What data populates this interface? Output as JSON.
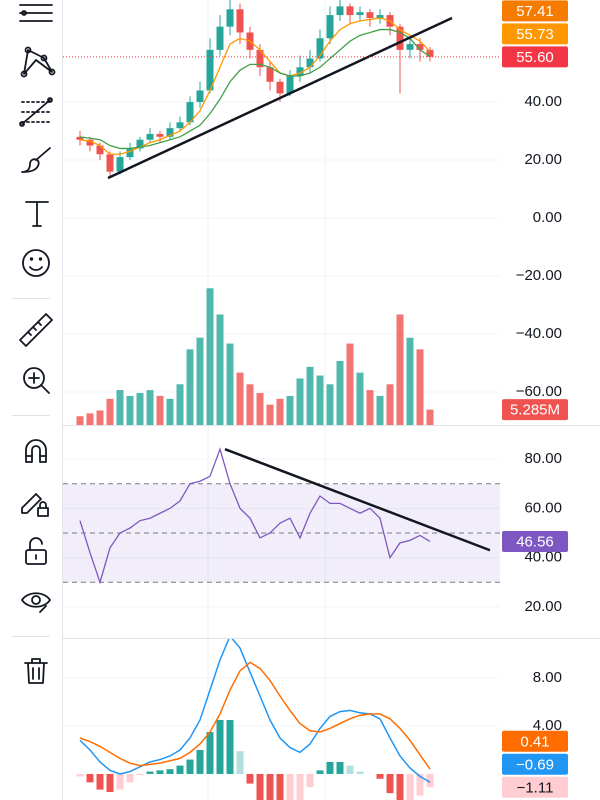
{
  "chart_data": [
    {
      "type": "candlestick",
      "open": [
        28,
        27,
        25,
        22,
        16,
        21,
        24,
        27,
        29,
        28,
        31,
        33,
        40,
        44,
        58,
        66,
        72,
        64,
        58,
        52,
        47,
        43,
        49,
        52,
        55,
        62,
        70,
        73,
        70,
        71,
        69,
        70,
        66,
        58,
        60,
        58
      ],
      "high": [
        30,
        28,
        26,
        23,
        23,
        26,
        28,
        31,
        30,
        33,
        35,
        42,
        47,
        62,
        70,
        76,
        74,
        66,
        60,
        54,
        48,
        51,
        56,
        58,
        65,
        73,
        76,
        74,
        73,
        72,
        72,
        71,
        67,
        63,
        62,
        59
      ],
      "low": [
        25,
        23,
        20,
        14,
        15,
        20,
        23,
        26,
        26,
        27,
        30,
        32,
        38,
        43,
        56,
        63,
        60,
        55,
        49,
        44,
        40,
        42,
        47,
        50,
        54,
        60,
        68,
        67,
        68,
        66,
        67,
        63,
        43,
        55,
        54,
        54
      ],
      "close": [
        27,
        25,
        22,
        16,
        21,
        24,
        27,
        29,
        28,
        31,
        33,
        40,
        44,
        58,
        66,
        72,
        64,
        58,
        52,
        47,
        43,
        49,
        52,
        55,
        62,
        70,
        73,
        70,
        71,
        69,
        70,
        66,
        58,
        60,
        58,
        55.6
      ],
      "close_labels": [
        null,
        null,
        null,
        null,
        null,
        null,
        null,
        null,
        null,
        null,
        null,
        null,
        null,
        null,
        null,
        null,
        null,
        null,
        null,
        null,
        null,
        null,
        null,
        null,
        null,
        null,
        null,
        null,
        null,
        null,
        null,
        null,
        null,
        null,
        null,
        "55.60"
      ],
      "up_color": "#26a69a",
      "down_color": "#ef5350",
      "last_line_color": "#f23645",
      "overlays": [
        {
          "color": "#ff9800",
          "values": [
            27,
            26.5,
            25,
            22,
            22,
            23,
            24.5,
            26,
            27,
            28.5,
            30,
            33,
            37,
            44,
            52,
            60,
            62,
            61,
            58,
            54,
            50,
            49,
            50,
            52,
            56,
            61,
            65,
            67,
            68,
            68.5,
            69,
            68,
            65,
            63,
            61,
            57.41
          ]
        },
        {
          "color": "#43a047",
          "values": [
            28,
            27.5,
            27,
            25,
            24,
            24,
            24.5,
            25,
            26,
            27,
            28,
            30,
            32,
            36,
            41,
            47,
            51,
            53,
            53,
            52,
            50,
            49,
            49,
            50,
            52,
            55,
            58,
            61,
            63,
            64,
            65,
            65,
            64,
            62,
            58,
            55.73
          ]
        }
      ],
      "badge_colors": [
        "#f57c00",
        "#ff9800"
      ],
      "trendline": {
        "x": [
          2.8,
          37.2
        ],
        "y": [
          13.8,
          69
        ]
      },
      "ylim": [
        -71.4,
        75.2
      ],
      "yticks": [
        {
          "value": 40,
          "label": "40.00"
        },
        {
          "value": 20,
          "label": "20.00"
        },
        {
          "value": 0,
          "label": "0.00"
        },
        {
          "value": -20,
          "label": "−20.00"
        },
        {
          "value": -40,
          "label": "−40.00"
        },
        {
          "value": -60,
          "label": "−60.00"
        }
      ],
      "volume": {
        "values": [
          3,
          4,
          5,
          9,
          12,
          10,
          11,
          12,
          10,
          9,
          14,
          26,
          30,
          47,
          38,
          28,
          18,
          14,
          11,
          7,
          9,
          10,
          16,
          20,
          17,
          14,
          22,
          28,
          18,
          12,
          10,
          14,
          38,
          30,
          26,
          5.285
        ],
        "value_labels": [
          null,
          null,
          null,
          null,
          null,
          null,
          null,
          null,
          null,
          null,
          null,
          null,
          null,
          null,
          null,
          null,
          null,
          null,
          null,
          null,
          null,
          null,
          null,
          null,
          null,
          null,
          null,
          null,
          null,
          null,
          null,
          null,
          null,
          null,
          null,
          "5.285M"
        ],
        "vlim": [
          0,
          55
        ]
      }
    },
    {
      "type": "line",
      "color": "#7e57c2",
      "values": [
        55,
        42,
        30,
        44,
        50,
        52,
        55,
        56,
        58,
        60,
        63,
        70,
        71,
        73,
        84,
        70,
        60,
        56,
        48,
        50,
        54,
        56,
        48,
        58,
        65,
        62,
        62,
        60,
        58,
        60,
        56,
        40,
        46,
        47,
        49,
        46.56
      ],
      "bands": [
        30,
        50,
        70
      ],
      "trendline": {
        "x": [
          14.5,
          41
        ],
        "y": [
          84,
          43
        ]
      },
      "ylim": [
        8.2,
        92.6
      ],
      "yticks": [
        {
          "value": 80,
          "label": "80.00"
        },
        {
          "value": 60,
          "label": "60.00"
        },
        {
          "value": 40,
          "label": "40.00"
        },
        {
          "value": 20,
          "label": "20.00"
        }
      ]
    },
    {
      "type": "macd",
      "series": [
        {
          "color": "#2196f3",
          "values": [
            2.8,
            2,
            1,
            0.3,
            0,
            0.2,
            0.6,
            1,
            1.2,
            1.5,
            2,
            3,
            4.5,
            7,
            9.5,
            11.5,
            10.5,
            8.5,
            6.5,
            4.5,
            3,
            2.2,
            1.8,
            2.5,
            3.8,
            4.8,
            5.2,
            5.3,
            5.1,
            5,
            4.6,
            3,
            1.5,
            0.5,
            -0.2,
            -0.69
          ],
          "value_labels": [
            null,
            null,
            null,
            null,
            null,
            null,
            null,
            null,
            null,
            null,
            null,
            null,
            null,
            null,
            null,
            null,
            null,
            null,
            null,
            null,
            null,
            null,
            null,
            null,
            null,
            null,
            null,
            null,
            null,
            null,
            null,
            null,
            null,
            null,
            null,
            "−0.69"
          ]
        },
        {
          "color": "#ff6d00",
          "values": [
            3,
            2.7,
            2.3,
            1.8,
            1.3,
            0.9,
            0.7,
            0.8,
            0.9,
            1.1,
            1.3,
            1.8,
            2.5,
            3.5,
            5,
            7,
            8.6,
            9.3,
            8.8,
            7.8,
            6.5,
            5.3,
            4.2,
            3.6,
            3.5,
            3.8,
            4.2,
            4.6,
            4.9,
            5,
            5,
            4.6,
            3.8,
            2.8,
            1.6,
            0.41
          ]
        }
      ],
      "histogram": [
        -0.2,
        -0.7,
        -1.3,
        -1.5,
        -1.3,
        -0.7,
        -0.1,
        0.2,
        0.3,
        0.4,
        0.7,
        1.2,
        2,
        3.5,
        4.5,
        4.5,
        1.9,
        -0.8,
        -2.3,
        -3.3,
        -3.5,
        -3.1,
        -2.4,
        -1.1,
        0.3,
        1,
        1,
        0.7,
        0.2,
        0,
        -0.4,
        -1.6,
        -2.3,
        -2.3,
        -1.8,
        -1.11
      ],
      "histogram_labels": [
        null,
        null,
        null,
        null,
        null,
        null,
        null,
        null,
        null,
        null,
        null,
        null,
        null,
        null,
        null,
        null,
        null,
        null,
        null,
        null,
        null,
        null,
        null,
        null,
        null,
        null,
        null,
        null,
        null,
        null,
        null,
        null,
        null,
        null,
        null,
        "−1.11"
      ],
      "histogram_colors": [
        "#26a69a",
        "#b2dfdb",
        "#ffcdd2",
        "#ef5350"
      ],
      "ylim": [
        -2.17,
        11.17
      ],
      "yticks": [
        {
          "value": 8,
          "label": "8.00"
        },
        {
          "value": 4,
          "label": "4.00"
        }
      ]
    }
  ]
}
